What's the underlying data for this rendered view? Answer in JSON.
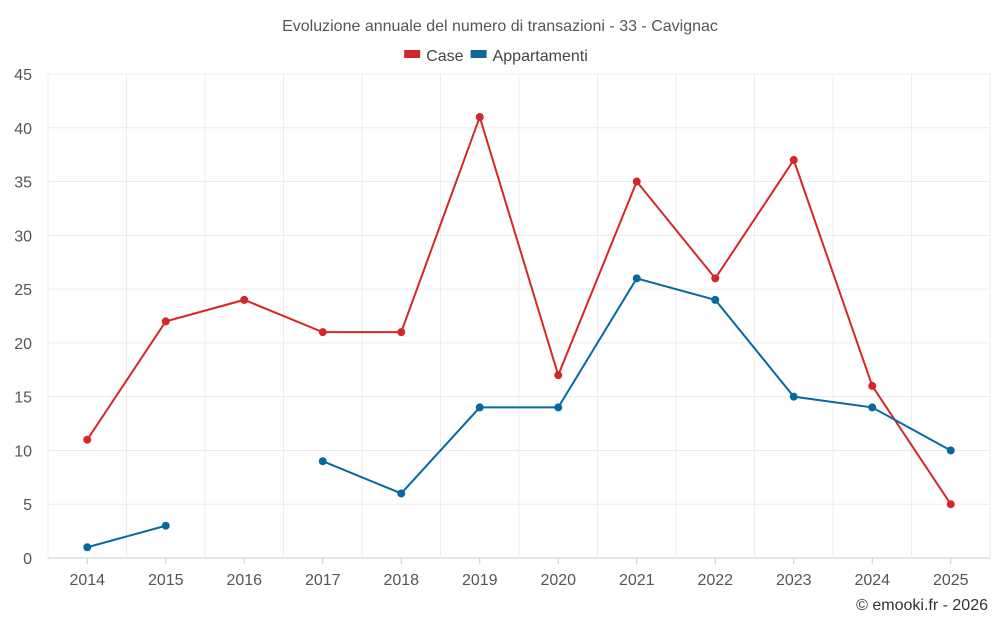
{
  "chart_data": {
    "type": "line",
    "title": "Evoluzione annuale del numero di transazioni - 33 - Cavignac",
    "categories": [
      "2014",
      "2015",
      "2016",
      "2017",
      "2018",
      "2019",
      "2020",
      "2021",
      "2022",
      "2023",
      "2024",
      "2025"
    ],
    "ylim": [
      0,
      45
    ],
    "yticks": [
      0,
      5,
      10,
      15,
      20,
      25,
      30,
      35,
      40,
      45
    ],
    "grid": true,
    "legend_position": "top-center",
    "series": [
      {
        "name": "Case",
        "color": "#d62728",
        "values": [
          11,
          22,
          24,
          21,
          21,
          41,
          17,
          35,
          26,
          37,
          16,
          5
        ]
      },
      {
        "name": "Appartamenti",
        "color": "#0868a0",
        "values": [
          1,
          3,
          null,
          9,
          6,
          14,
          14,
          26,
          24,
          15,
          14,
          10
        ]
      }
    ]
  },
  "credit": "© emooki.fr - 2026"
}
